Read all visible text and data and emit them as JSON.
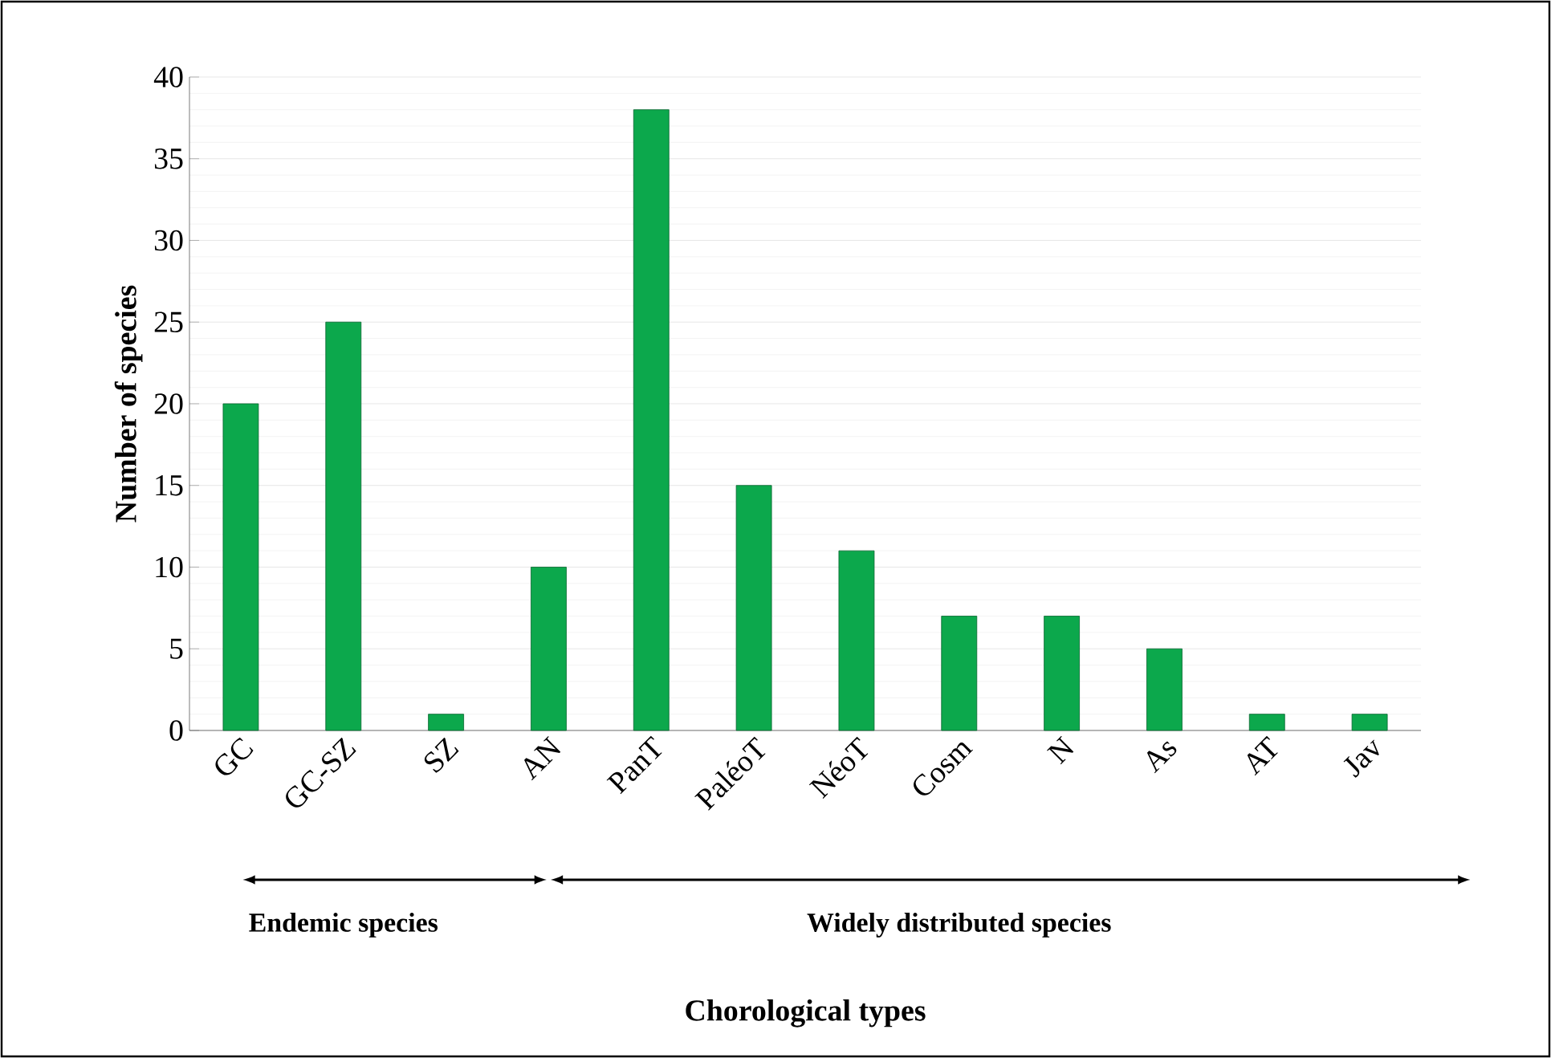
{
  "chart_data": {
    "type": "bar",
    "ylabel": "Number of species",
    "categories": [
      "GC",
      "GC-SZ",
      "SZ",
      "AN",
      "PanT",
      "PaléoT",
      "NéoT",
      "Cosm",
      "N",
      "As",
      "AT",
      "Jav"
    ],
    "values": [
      20,
      25,
      1,
      10,
      38,
      15,
      11,
      7,
      7,
      5,
      1,
      1
    ],
    "color": "#0ca84c",
    "ylim": [
      0,
      40
    ],
    "yticks": [
      0,
      5,
      10,
      15,
      20,
      25,
      30,
      35,
      40
    ],
    "grid": "y",
    "annotations": [
      "Endemic species",
      "Widely distributed species",
      "Chorological types"
    ]
  }
}
